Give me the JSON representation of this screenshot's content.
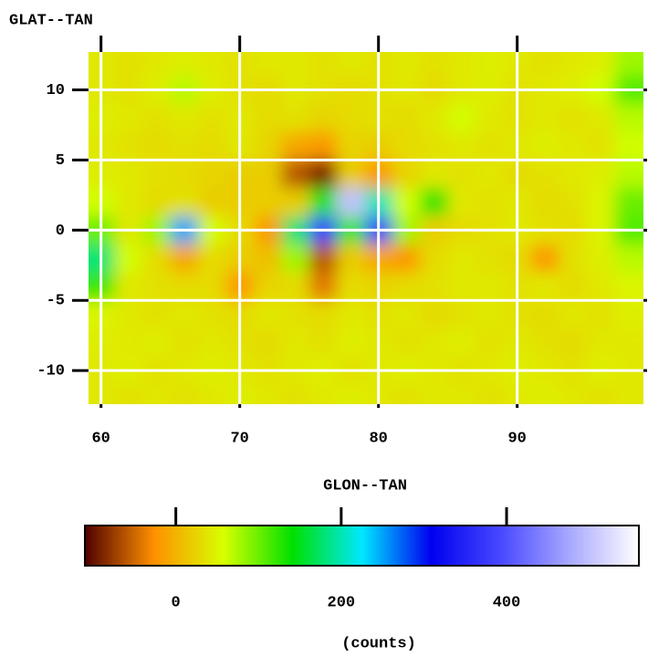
{
  "chart_data": {
    "type": "heatmap",
    "ylabel": "GLAT--TAN",
    "xlabel": "GLON--TAN",
    "colorbar_label": "(counts)",
    "x": [
      60,
      62,
      64,
      66,
      68,
      70,
      72,
      74,
      76,
      78,
      80,
      82,
      84,
      86,
      88,
      90,
      92,
      94,
      96,
      98
    ],
    "y": [
      12,
      10,
      8,
      6,
      4,
      2,
      0,
      -2,
      -4,
      -6,
      -8,
      -10,
      -12
    ],
    "z": [
      [
        40,
        35,
        40,
        45,
        40,
        35,
        40,
        40,
        35,
        40,
        35,
        40,
        35,
        40,
        45,
        40,
        35,
        40,
        45,
        80
      ],
      [
        40,
        35,
        45,
        70,
        45,
        35,
        30,
        40,
        35,
        30,
        35,
        40,
        30,
        40,
        45,
        35,
        40,
        45,
        60,
        110
      ],
      [
        45,
        40,
        35,
        40,
        35,
        40,
        30,
        35,
        25,
        30,
        35,
        30,
        40,
        60,
        40,
        35,
        40,
        35,
        40,
        70
      ],
      [
        40,
        35,
        30,
        35,
        30,
        40,
        25,
        -10,
        -20,
        25,
        20,
        30,
        35,
        40,
        35,
        40,
        45,
        40,
        35,
        60
      ],
      [
        45,
        40,
        35,
        30,
        25,
        20,
        20,
        -60,
        -90,
        20,
        -20,
        25,
        40,
        35,
        40,
        30,
        35,
        40,
        45,
        70
      ],
      [
        60,
        40,
        30,
        35,
        20,
        20,
        20,
        20,
        150,
        500,
        200,
        60,
        130,
        40,
        35,
        40,
        30,
        35,
        50,
        100
      ],
      [
        100,
        40,
        80,
        250,
        60,
        30,
        -20,
        180,
        380,
        120,
        380,
        80,
        20,
        30,
        35,
        40,
        35,
        30,
        50,
        110
      ],
      [
        180,
        60,
        30,
        -10,
        30,
        20,
        10,
        80,
        -60,
        20,
        -10,
        -20,
        30,
        40,
        35,
        30,
        -20,
        35,
        45,
        70
      ],
      [
        120,
        40,
        35,
        30,
        30,
        -20,
        25,
        30,
        -40,
        30,
        25,
        30,
        35,
        40,
        40,
        35,
        40,
        30,
        40,
        50
      ],
      [
        50,
        40,
        35,
        40,
        35,
        30,
        40,
        35,
        30,
        40,
        35,
        40,
        30,
        35,
        40,
        35,
        30,
        40,
        35,
        45
      ],
      [
        45,
        40,
        45,
        35,
        40,
        35,
        30,
        40,
        35,
        45,
        40,
        35,
        40,
        45,
        35,
        40,
        35,
        30,
        40,
        40
      ],
      [
        40,
        45,
        35,
        40,
        45,
        40,
        35,
        40,
        45,
        35,
        40,
        45,
        40,
        35,
        40,
        45,
        40,
        35,
        45,
        40
      ],
      [
        40,
        35,
        40,
        35,
        40,
        45,
        40,
        35,
        40,
        45,
        40,
        35,
        40,
        40,
        35,
        40,
        45,
        40,
        35,
        40
      ]
    ],
    "xlim": [
      59.1,
      99.1
    ],
    "ylim": [
      -12.4,
      12.7
    ],
    "xticks": [
      60,
      70,
      80,
      90
    ],
    "yticks": [
      10,
      5,
      0,
      -5,
      -10
    ],
    "zlim": [
      -110,
      560
    ],
    "colorbar_ticks": [
      0,
      200,
      400
    ],
    "colormap": [
      "#500000",
      "#ff9000",
      "#d8ff00",
      "#00e000",
      "#00e8ff",
      "#0000f0",
      "#4848ff",
      "#a8a8ff",
      "#ffffff"
    ],
    "grid": true,
    "grid_color": "#ffffff"
  }
}
